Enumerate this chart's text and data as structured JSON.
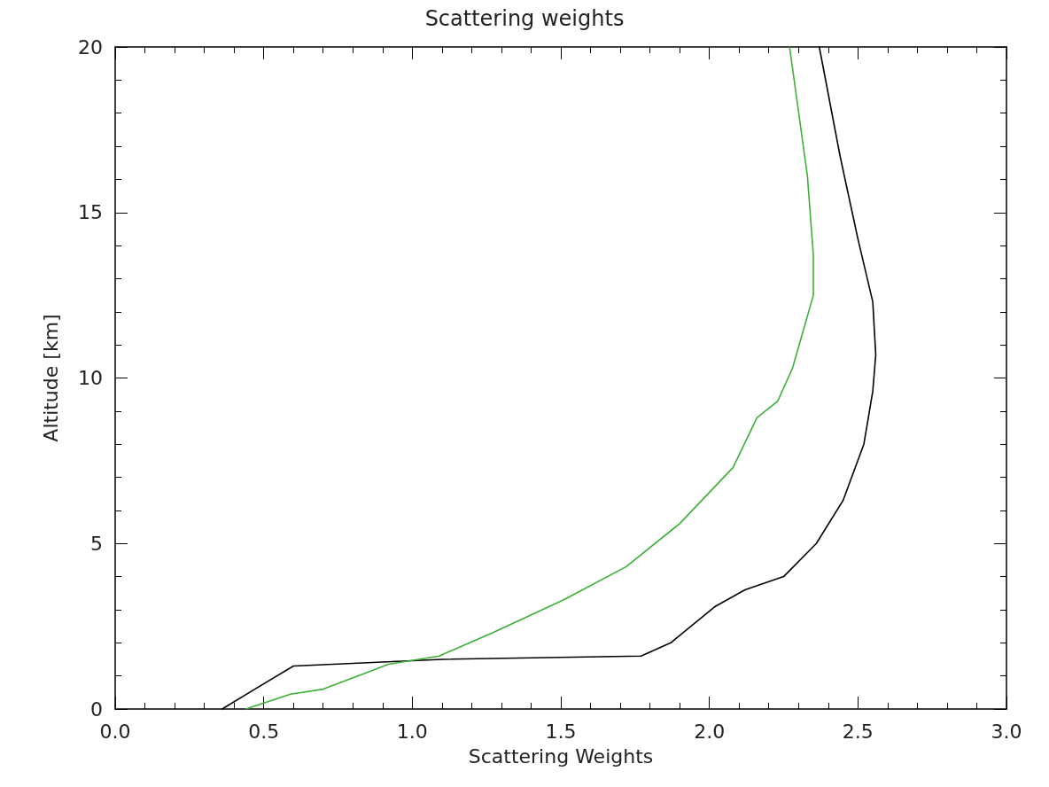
{
  "chart_data": {
    "type": "line",
    "title": "Scattering weights",
    "xlabel": "Scattering Weights",
    "ylabel": "Altitude [km]",
    "xlim": [
      0,
      3
    ],
    "xticks": [
      {
        "value": 0,
        "label": "0.0"
      },
      0.5,
      {
        "value": 1,
        "label": "1.0"
      },
      1.5,
      {
        "value": 2,
        "label": "2.0"
      },
      2.5,
      {
        "value": 3,
        "label": "3.0"
      }
    ],
    "ylim": [
      0,
      20
    ],
    "yticks": [
      0,
      5,
      10,
      15,
      20
    ],
    "grid": false,
    "marker": "none",
    "line_style": "solid",
    "series": [
      {
        "color": "#000000",
        "x": [
          0.36,
          0.47,
          0.6,
          1.1,
          1.77,
          1.87,
          2.02,
          2.12,
          2.25,
          2.36,
          2.45,
          2.52,
          2.55,
          2.56,
          2.55,
          2.5,
          2.44,
          2.37
        ],
        "values": [
          0,
          0.6,
          1.3,
          1.5,
          1.6,
          2.0,
          3.1,
          3.6,
          4.0,
          5.0,
          6.3,
          8.0,
          9.6,
          10.7,
          12.3,
          14.2,
          16.7,
          20
        ]
      },
      {
        "color": "#3cb034",
        "x": [
          0.44,
          0.59,
          0.7,
          0.92,
          1.09,
          1.27,
          1.51,
          1.72,
          1.9,
          2.08,
          2.16,
          2.23,
          2.28,
          2.35,
          2.35,
          2.33,
          2.27
        ],
        "values": [
          0,
          0.45,
          0.6,
          1.35,
          1.6,
          2.3,
          3.3,
          4.3,
          5.6,
          7.3,
          8.8,
          9.3,
          10.3,
          12.5,
          13.7,
          16.1,
          20
        ]
      }
    ]
  }
}
